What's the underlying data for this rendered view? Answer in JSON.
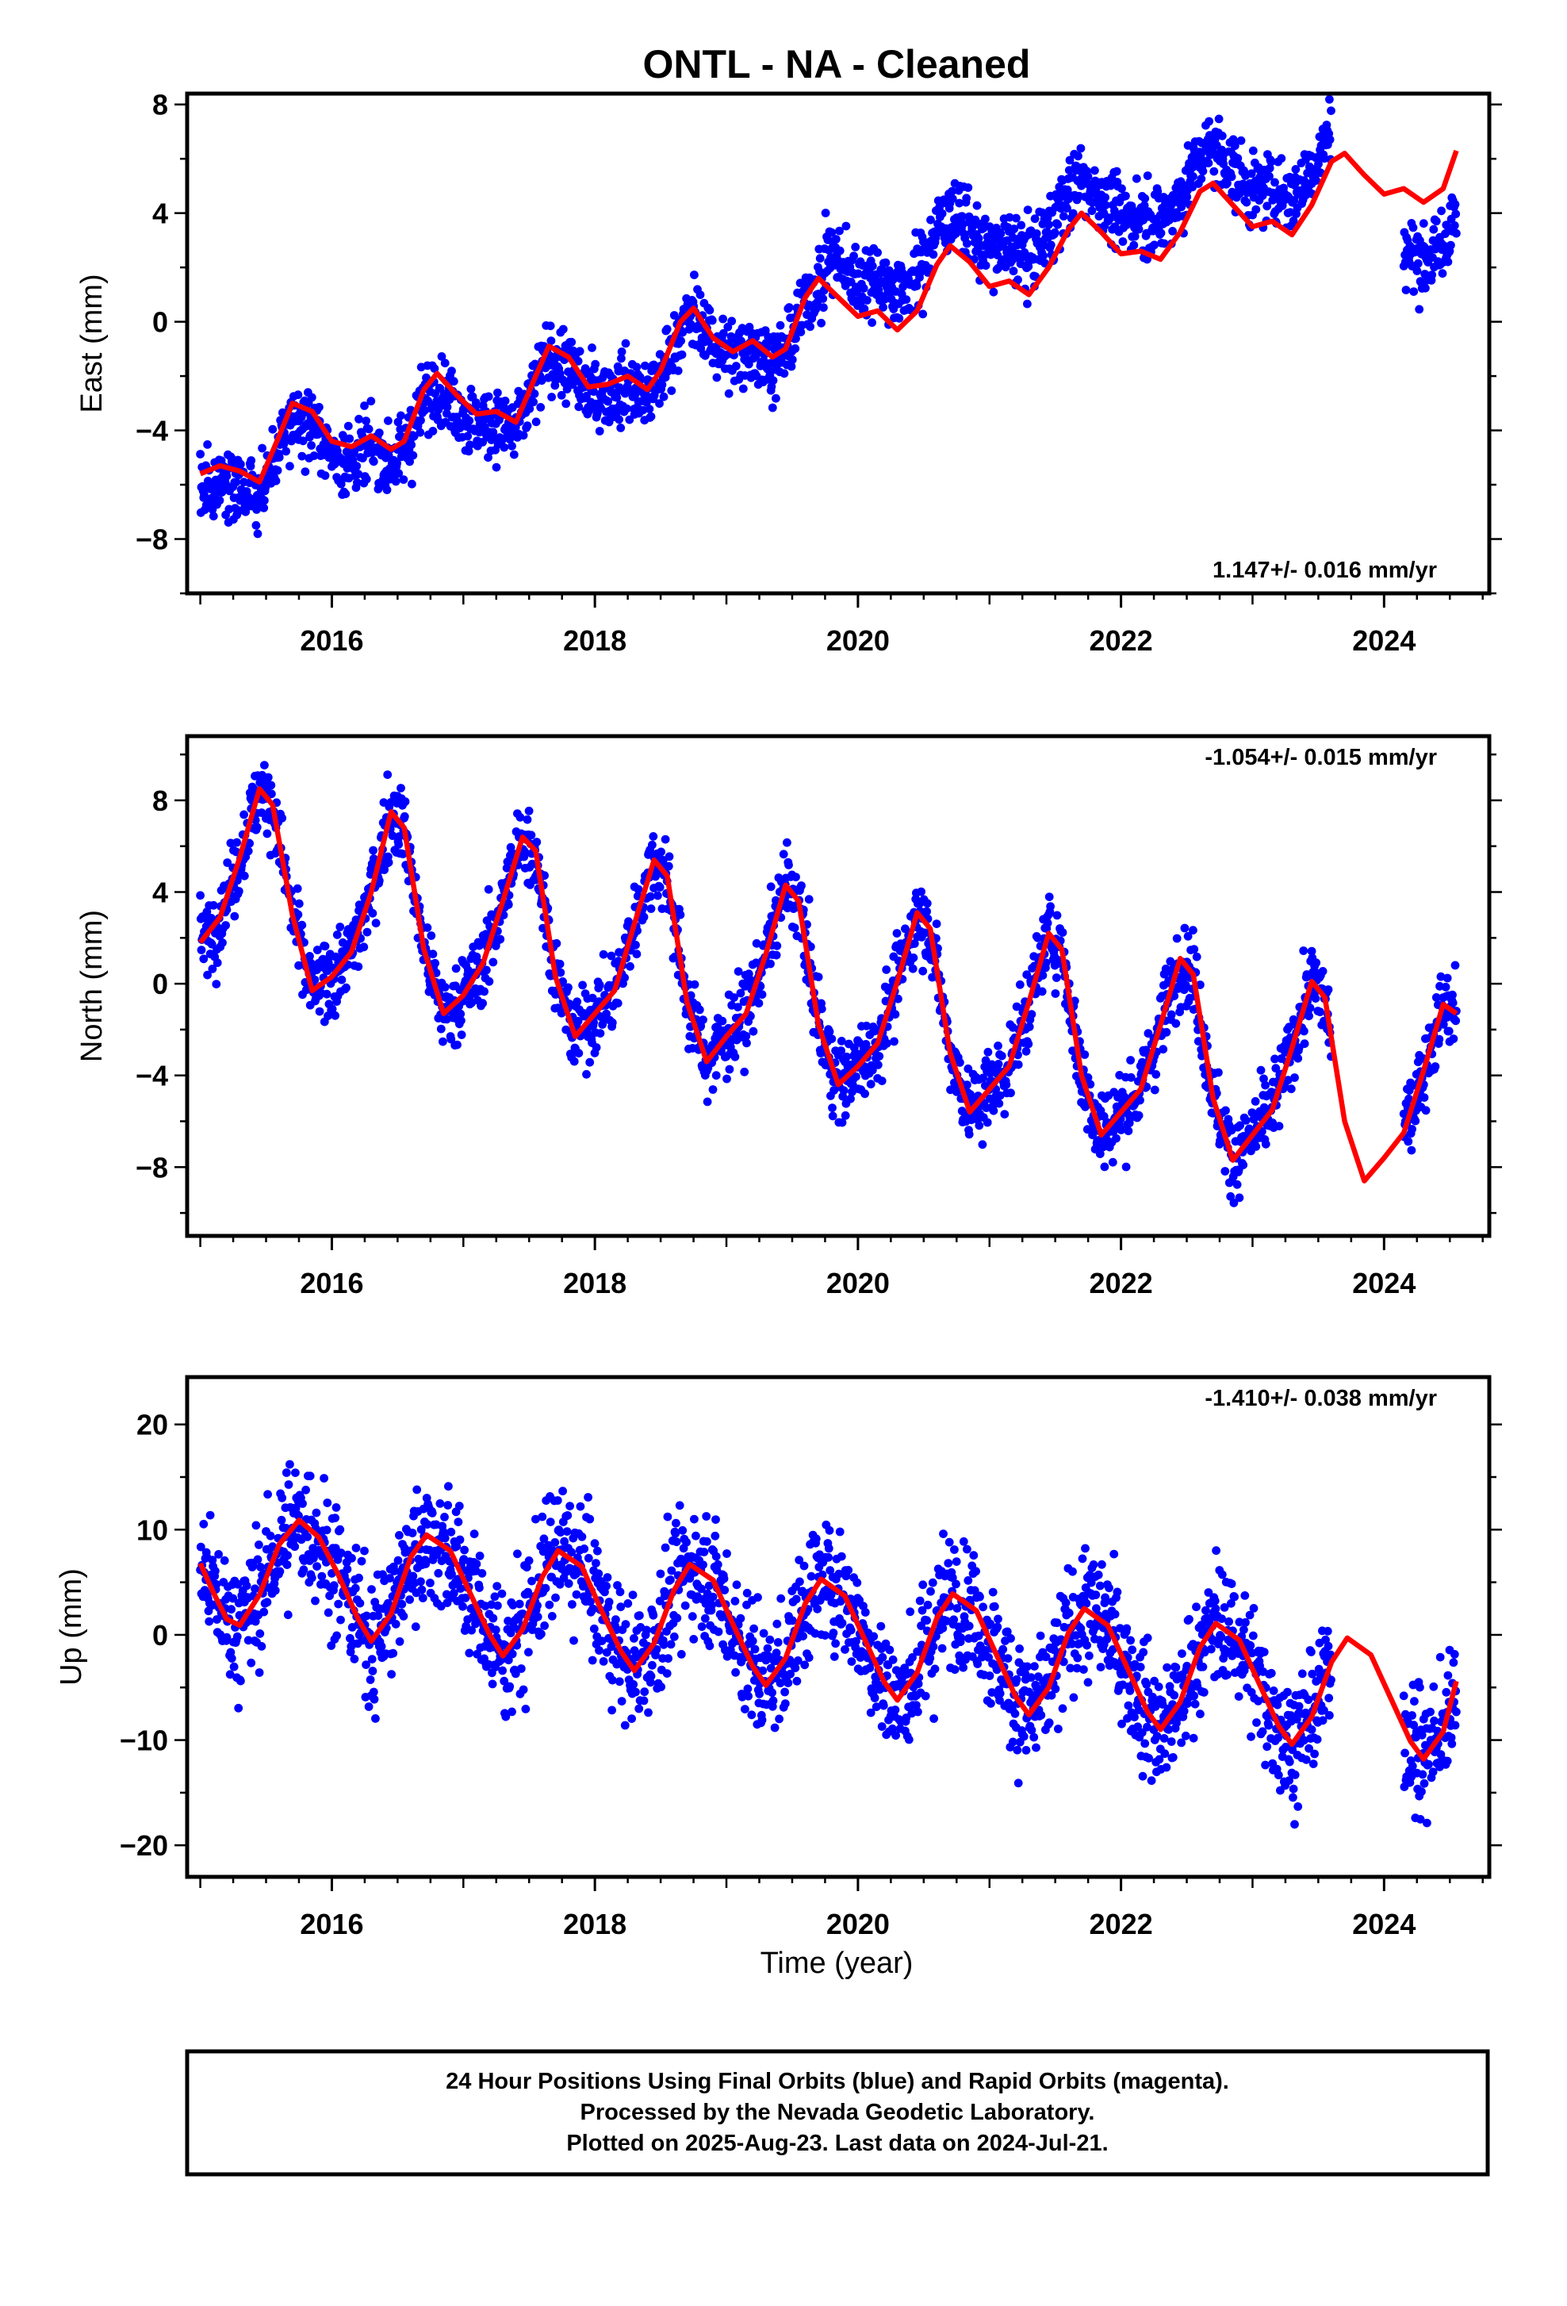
{
  "title": "ONTL  - NA - Cleaned",
  "colors": {
    "data_points": "#0000ff",
    "model_curve": "#ff0000",
    "frame": "#000000",
    "background": "#ffffff"
  },
  "footer": {
    "line1": "24 Hour Positions Using Final Orbits (blue) and Rapid Orbits (magenta).",
    "line2": "Processed by the Nevada Geodetic Laboratory.",
    "line3": "Plotted on 2025-Aug-23. Last data on 2024-Jul-21."
  },
  "chart_data": [
    {
      "type": "scatter",
      "component": "east",
      "ylabel": "East (mm)",
      "xlabel": "",
      "xlim": [
        2014.9,
        2024.8
      ],
      "ylim": [
        -10,
        8.4
      ],
      "x_ticks": [
        2016,
        2018,
        2020,
        2022,
        2024
      ],
      "x_tick_labels": [
        "2016",
        "2018",
        "2020",
        "2022",
        "2024"
      ],
      "y_ticks": [
        -8,
        -4,
        0,
        4,
        8
      ],
      "y_tick_labels": [
        "−8",
        "−4",
        "0",
        "4",
        "8"
      ],
      "rate_label": "1.147+/- 0.016 mm/yr",
      "rate_position": "bottom-right",
      "data_range": [
        [
          2015.0,
          2019.75
        ],
        [
          2019.75,
          2023.6
        ],
        [
          2024.15,
          2024.55
        ]
      ],
      "model_curve": [
        [
          2015.0,
          -5.6
        ],
        [
          2015.15,
          -5.3
        ],
        [
          2015.3,
          -5.5
        ],
        [
          2015.45,
          -5.9
        ],
        [
          2015.6,
          -4.2
        ],
        [
          2015.7,
          -3.0
        ],
        [
          2015.85,
          -3.3
        ],
        [
          2016.0,
          -4.4
        ],
        [
          2016.15,
          -4.6
        ],
        [
          2016.3,
          -4.2
        ],
        [
          2016.45,
          -4.7
        ],
        [
          2016.55,
          -4.4
        ],
        [
          2016.7,
          -2.5
        ],
        [
          2016.8,
          -1.9
        ],
        [
          2016.95,
          -2.7
        ],
        [
          2017.1,
          -3.4
        ],
        [
          2017.25,
          -3.3
        ],
        [
          2017.4,
          -3.7
        ],
        [
          2017.55,
          -2.0
        ],
        [
          2017.65,
          -0.9
        ],
        [
          2017.8,
          -1.3
        ],
        [
          2017.95,
          -2.4
        ],
        [
          2018.1,
          -2.3
        ],
        [
          2018.25,
          -2.0
        ],
        [
          2018.4,
          -2.5
        ],
        [
          2018.5,
          -1.8
        ],
        [
          2018.65,
          0.0
        ],
        [
          2018.75,
          0.5
        ],
        [
          2018.9,
          -0.6
        ],
        [
          2019.05,
          -1.1
        ],
        [
          2019.2,
          -0.7
        ],
        [
          2019.35,
          -1.3
        ],
        [
          2019.45,
          -1.0
        ],
        [
          2019.6,
          0.9
        ],
        [
          2019.7,
          1.6
        ],
        [
          2019.85,
          0.9
        ],
        [
          2020.0,
          0.2
        ],
        [
          2020.15,
          0.4
        ],
        [
          2020.3,
          -0.3
        ],
        [
          2020.45,
          0.4
        ],
        [
          2020.6,
          2.1
        ],
        [
          2020.7,
          2.8
        ],
        [
          2020.85,
          2.2
        ],
        [
          2021.0,
          1.3
        ],
        [
          2021.15,
          1.5
        ],
        [
          2021.3,
          1.0
        ],
        [
          2021.45,
          2.0
        ],
        [
          2021.6,
          3.4
        ],
        [
          2021.7,
          4.0
        ],
        [
          2021.85,
          3.3
        ],
        [
          2022.0,
          2.5
        ],
        [
          2022.15,
          2.6
        ],
        [
          2022.3,
          2.3
        ],
        [
          2022.45,
          3.3
        ],
        [
          2022.6,
          4.8
        ],
        [
          2022.7,
          5.1
        ],
        [
          2022.85,
          4.3
        ],
        [
          2023.0,
          3.5
        ],
        [
          2023.15,
          3.7
        ],
        [
          2023.3,
          3.2
        ],
        [
          2023.45,
          4.3
        ],
        [
          2023.6,
          5.9
        ],
        [
          2023.7,
          6.2
        ],
        [
          2023.85,
          5.4
        ],
        [
          2024.0,
          4.7
        ],
        [
          2024.15,
          4.9
        ],
        [
          2024.3,
          4.4
        ],
        [
          2024.45,
          4.9
        ],
        [
          2024.55,
          6.3
        ]
      ]
    },
    {
      "type": "scatter",
      "component": "north",
      "ylabel": "North (mm)",
      "xlabel": "",
      "xlim": [
        2014.9,
        2024.8
      ],
      "ylim": [
        -11,
        10.8
      ],
      "x_ticks": [
        2016,
        2018,
        2020,
        2022,
        2024
      ],
      "x_tick_labels": [
        "2016",
        "2018",
        "2020",
        "2022",
        "2024"
      ],
      "y_ticks": [
        -8,
        -4,
        0,
        4,
        8
      ],
      "y_tick_labels": [
        "−8",
        "−4",
        "0",
        "4",
        "8"
      ],
      "rate_label": "-1.054+/- 0.015 mm/yr",
      "rate_position": "top-right",
      "data_range": [
        [
          2015.0,
          2019.75
        ],
        [
          2019.75,
          2023.6
        ],
        [
          2024.15,
          2024.55
        ]
      ],
      "model_curve": [
        [
          2015.0,
          1.8
        ],
        [
          2015.15,
          2.9
        ],
        [
          2015.3,
          5.5
        ],
        [
          2015.45,
          8.5
        ],
        [
          2015.55,
          7.8
        ],
        [
          2015.7,
          3.0
        ],
        [
          2015.85,
          -0.3
        ],
        [
          2016.0,
          0.3
        ],
        [
          2016.15,
          1.4
        ],
        [
          2016.3,
          4.0
        ],
        [
          2016.45,
          7.5
        ],
        [
          2016.55,
          6.8
        ],
        [
          2016.7,
          1.5
        ],
        [
          2016.85,
          -1.3
        ],
        [
          2017.0,
          -0.5
        ],
        [
          2017.15,
          0.9
        ],
        [
          2017.3,
          3.6
        ],
        [
          2017.45,
          6.4
        ],
        [
          2017.55,
          5.8
        ],
        [
          2017.7,
          0.3
        ],
        [
          2017.85,
          -2.3
        ],
        [
          2018.0,
          -1.3
        ],
        [
          2018.15,
          -0.3
        ],
        [
          2018.3,
          2.6
        ],
        [
          2018.45,
          5.4
        ],
        [
          2018.55,
          4.7
        ],
        [
          2018.7,
          -0.8
        ],
        [
          2018.85,
          -3.4
        ],
        [
          2019.0,
          -2.3
        ],
        [
          2019.15,
          -1.3
        ],
        [
          2019.3,
          1.3
        ],
        [
          2019.45,
          4.3
        ],
        [
          2019.55,
          3.6
        ],
        [
          2019.7,
          -1.8
        ],
        [
          2019.85,
          -4.4
        ],
        [
          2020.0,
          -3.6
        ],
        [
          2020.15,
          -2.6
        ],
        [
          2020.3,
          0.1
        ],
        [
          2020.45,
          3.1
        ],
        [
          2020.55,
          2.4
        ],
        [
          2020.7,
          -3.0
        ],
        [
          2020.85,
          -5.6
        ],
        [
          2021.0,
          -4.6
        ],
        [
          2021.15,
          -3.6
        ],
        [
          2021.3,
          -0.8
        ],
        [
          2021.45,
          2.2
        ],
        [
          2021.55,
          1.5
        ],
        [
          2021.7,
          -4.0
        ],
        [
          2021.85,
          -6.6
        ],
        [
          2022.0,
          -5.6
        ],
        [
          2022.15,
          -4.6
        ],
        [
          2022.3,
          -1.8
        ],
        [
          2022.45,
          1.1
        ],
        [
          2022.55,
          0.4
        ],
        [
          2022.7,
          -5.0
        ],
        [
          2022.85,
          -7.7
        ],
        [
          2023.0,
          -6.6
        ],
        [
          2023.15,
          -5.5
        ],
        [
          2023.3,
          -2.8
        ],
        [
          2023.45,
          0.1
        ],
        [
          2023.55,
          -0.6
        ],
        [
          2023.7,
          -6.0
        ],
        [
          2023.85,
          -8.6
        ],
        [
          2024.0,
          -7.6
        ],
        [
          2024.15,
          -6.5
        ],
        [
          2024.3,
          -3.8
        ],
        [
          2024.45,
          -0.9
        ],
        [
          2024.55,
          -1.3
        ]
      ]
    },
    {
      "type": "scatter",
      "component": "up",
      "ylabel": "Up (mm)",
      "xlabel": "Time (year)",
      "xlim": [
        2014.9,
        2024.8
      ],
      "ylim": [
        -23,
        24.5
      ],
      "x_ticks": [
        2016,
        2018,
        2020,
        2022,
        2024
      ],
      "x_tick_labels": [
        "2016",
        "2018",
        "2020",
        "2022",
        "2024"
      ],
      "y_ticks": [
        -20,
        -10,
        0,
        10,
        20
      ],
      "y_tick_labels": [
        "−20",
        "−10",
        "0",
        "10",
        "20"
      ],
      "rate_label": "-1.410+/- 0.038 mm/yr",
      "rate_position": "top-right",
      "data_range": [
        [
          2015.0,
          2019.75
        ],
        [
          2019.75,
          2023.6
        ],
        [
          2024.15,
          2024.55
        ]
      ],
      "model_curve": [
        [
          2015.0,
          6.8
        ],
        [
          2015.1,
          4.0
        ],
        [
          2015.2,
          1.5
        ],
        [
          2015.3,
          0.9
        ],
        [
          2015.45,
          3.8
        ],
        [
          2015.6,
          8.6
        ],
        [
          2015.75,
          10.9
        ],
        [
          2015.9,
          9.3
        ],
        [
          2016.05,
          5.7
        ],
        [
          2016.2,
          1.5
        ],
        [
          2016.3,
          -0.6
        ],
        [
          2016.45,
          2.0
        ],
        [
          2016.6,
          7.4
        ],
        [
          2016.72,
          9.5
        ],
        [
          2016.9,
          8.0
        ],
        [
          2017.05,
          4.0
        ],
        [
          2017.2,
          0.0
        ],
        [
          2017.3,
          -2.0
        ],
        [
          2017.45,
          0.5
        ],
        [
          2017.6,
          5.5
        ],
        [
          2017.72,
          8.0
        ],
        [
          2017.9,
          6.5
        ],
        [
          2018.05,
          2.3
        ],
        [
          2018.2,
          -1.6
        ],
        [
          2018.3,
          -3.4
        ],
        [
          2018.45,
          -0.8
        ],
        [
          2018.6,
          4.2
        ],
        [
          2018.72,
          6.7
        ],
        [
          2018.9,
          5.2
        ],
        [
          2019.05,
          1.0
        ],
        [
          2019.2,
          -3.0
        ],
        [
          2019.3,
          -4.8
        ],
        [
          2019.45,
          -2.2
        ],
        [
          2019.6,
          3.0
        ],
        [
          2019.72,
          5.3
        ],
        [
          2019.9,
          3.7
        ],
        [
          2020.05,
          -0.4
        ],
        [
          2020.2,
          -4.5
        ],
        [
          2020.3,
          -6.2
        ],
        [
          2020.45,
          -3.6
        ],
        [
          2020.6,
          1.6
        ],
        [
          2020.72,
          3.9
        ],
        [
          2020.9,
          2.3
        ],
        [
          2021.05,
          -1.8
        ],
        [
          2021.2,
          -5.9
        ],
        [
          2021.3,
          -7.6
        ],
        [
          2021.45,
          -5.0
        ],
        [
          2021.6,
          0.2
        ],
        [
          2021.72,
          2.5
        ],
        [
          2021.9,
          0.9
        ],
        [
          2022.05,
          -3.2
        ],
        [
          2022.2,
          -7.3
        ],
        [
          2022.3,
          -9.0
        ],
        [
          2022.45,
          -6.4
        ],
        [
          2022.6,
          -1.2
        ],
        [
          2022.72,
          1.1
        ],
        [
          2022.9,
          -0.5
        ],
        [
          2023.05,
          -4.6
        ],
        [
          2023.2,
          -8.7
        ],
        [
          2023.3,
          -10.4
        ],
        [
          2023.45,
          -7.8
        ],
        [
          2023.6,
          -2.6
        ],
        [
          2023.72,
          -0.3
        ],
        [
          2023.9,
          -1.9
        ],
        [
          2024.05,
          -6.0
        ],
        [
          2024.2,
          -10.1
        ],
        [
          2024.3,
          -11.8
        ],
        [
          2024.45,
          -9.2
        ],
        [
          2024.55,
          -4.4
        ]
      ]
    }
  ]
}
